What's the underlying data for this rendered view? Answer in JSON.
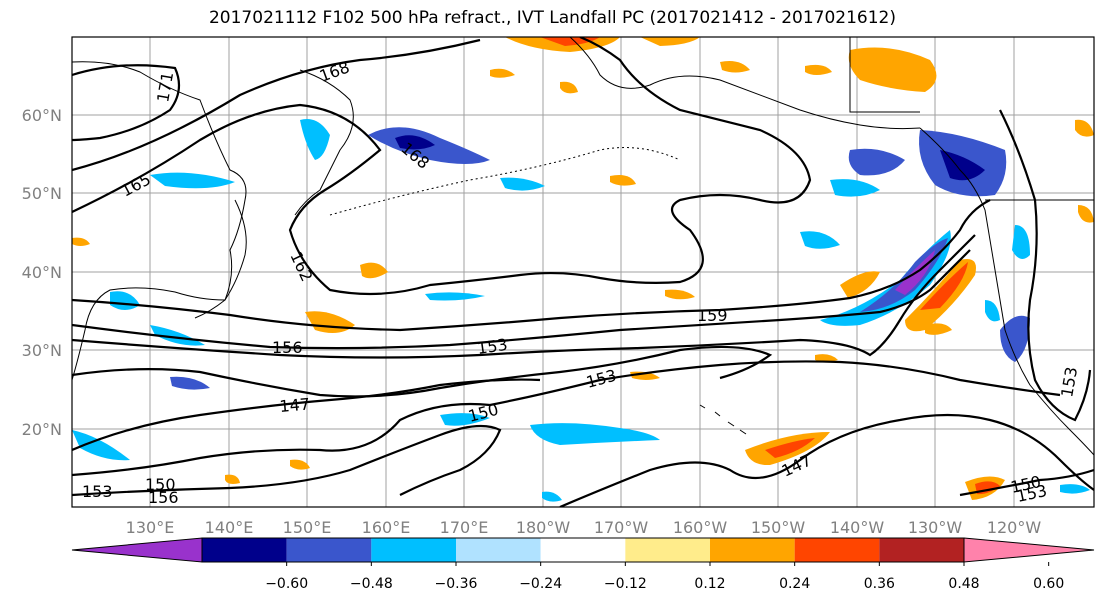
{
  "title": "2017021112 F102 500 hPa refract., IVT Landfall PC (2017021412 - 2017021612)",
  "map": {
    "lat_labels": [
      "60°N",
      "50°N",
      "40°N",
      "30°N",
      "20°N"
    ],
    "lon_labels": [
      "130°E",
      "140°E",
      "150°E",
      "160°E",
      "170°E",
      "180°W",
      "170°W",
      "160°W",
      "150°W",
      "140°W",
      "130°W",
      "120°W"
    ],
    "contour_labels": [
      "171",
      "168",
      "165",
      "168",
      "162",
      "159",
      "156",
      "153",
      "153",
      "147",
      "150",
      "147",
      "150",
      "153",
      "153",
      "156",
      "153",
      "150"
    ]
  },
  "colorbar": {
    "tick_labels": [
      "−0.60",
      "−0.48",
      "−0.36",
      "−0.24",
      "−0.12",
      "0.12",
      "0.24",
      "0.36",
      "0.48",
      "0.60"
    ],
    "colors": [
      "#9932cc",
      "#00008b",
      "#3a56cc",
      "#00bfff",
      "#b0e2ff",
      "#ffffff",
      "#ffec8b",
      "#ffa500",
      "#ff4500",
      "#b22222",
      "#ff82ab"
    ]
  }
}
